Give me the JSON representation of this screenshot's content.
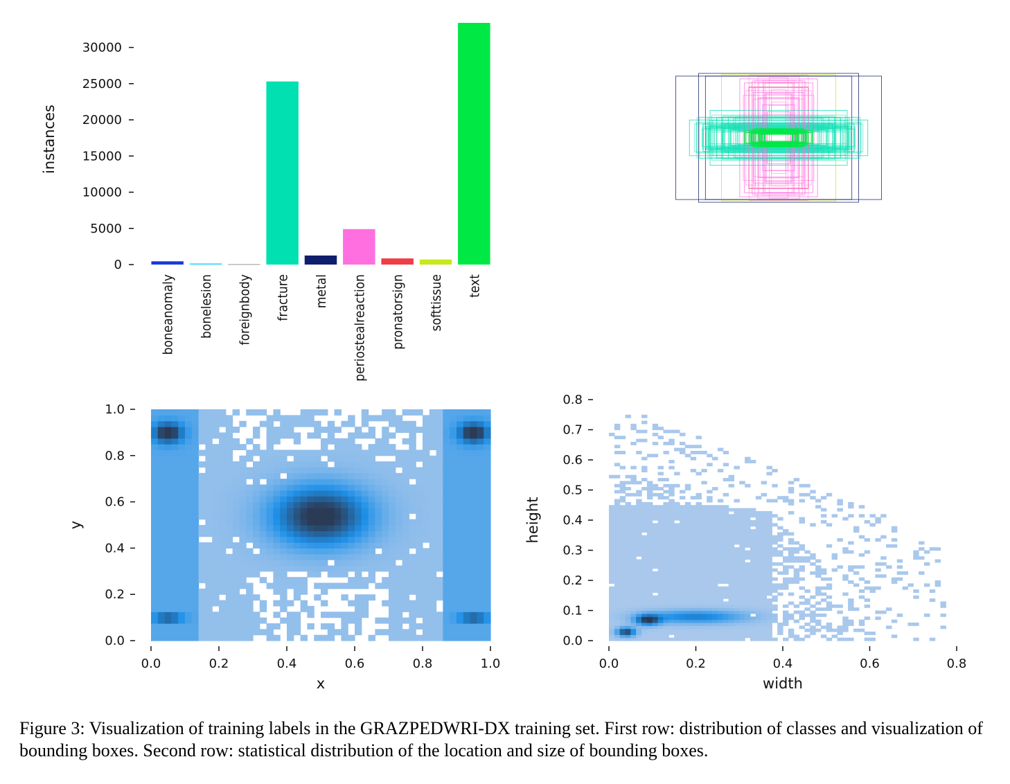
{
  "chart_data": [
    {
      "type": "bar",
      "categories": [
        "boneanomaly",
        "bonelesion",
        "foreignbody",
        "fracture",
        "metal",
        "periostealreaction",
        "pronatorsign",
        "softtissue",
        "text"
      ],
      "values": [
        450,
        150,
        30,
        25300,
        1250,
        4900,
        850,
        700,
        33400
      ],
      "colors": [
        "#1a3ad6",
        "#22d2ff",
        "#3a2a1a",
        "#00e0b0",
        "#101f6b",
        "#ff6fe0",
        "#ee3e46",
        "#c8e81c",
        "#00e844"
      ],
      "ylabel": "instances",
      "ylim": [
        0,
        33400
      ],
      "yticks": [
        0,
        5000,
        10000,
        15000,
        20000,
        25000,
        30000
      ],
      "yticklabels": [
        "0",
        "5000",
        "10000",
        "15000",
        "20000",
        "25000",
        "30000"
      ]
    },
    {
      "type": "box_overlay",
      "description_colors": [
        "#00e0b0",
        "#00e844",
        "#ff6fe0",
        "#ee3e46",
        "#c8e81c",
        "#101f6b",
        "#1a3ad6"
      ],
      "boxes": [
        {
          "w": 0.9,
          "h": 0.9,
          "color": "#101f6b"
        },
        {
          "w": 0.7,
          "h": 0.94,
          "color": "#101f6b"
        },
        {
          "w": 0.5,
          "h": 0.92,
          "color": "#c8e81c"
        },
        {
          "w": 0.64,
          "h": 0.9,
          "color": "#101f6b"
        },
        {
          "w": 0.34,
          "h": 0.86,
          "color": "#ff6fe0"
        },
        {
          "w": 0.3,
          "h": 0.8,
          "color": "#ff6fe0"
        },
        {
          "w": 0.26,
          "h": 0.74,
          "color": "#ee3e46"
        },
        {
          "w": 0.22,
          "h": 0.66,
          "color": "#ff6fe0"
        },
        {
          "w": 0.18,
          "h": 0.58,
          "color": "#ff6fe0"
        },
        {
          "w": 0.14,
          "h": 0.48,
          "color": "#ff6fe0"
        },
        {
          "w": 0.1,
          "h": 0.38,
          "color": "#ff6fe0"
        },
        {
          "w": 0.78,
          "h": 0.26,
          "color": "#00e0b0"
        },
        {
          "w": 0.72,
          "h": 0.22,
          "color": "#00e0b0"
        },
        {
          "w": 0.66,
          "h": 0.2,
          "color": "#00e0b0"
        },
        {
          "w": 0.6,
          "h": 0.18,
          "color": "#00e0b0"
        },
        {
          "w": 0.54,
          "h": 0.16,
          "color": "#00e0b0"
        },
        {
          "w": 0.48,
          "h": 0.14,
          "color": "#00e0b0"
        },
        {
          "w": 0.42,
          "h": 0.12,
          "color": "#00e0b0"
        },
        {
          "w": 0.36,
          "h": 0.1,
          "color": "#00e0b0"
        },
        {
          "w": 0.3,
          "h": 0.08,
          "color": "#00e844"
        },
        {
          "w": 0.24,
          "h": 0.06,
          "color": "#00e844"
        },
        {
          "w": 0.18,
          "h": 0.05,
          "color": "#00e844"
        },
        {
          "w": 0.6,
          "h": 0.4,
          "color": "#00e0b0"
        },
        {
          "w": 0.44,
          "h": 0.3,
          "color": "#00e0b0"
        }
      ]
    },
    {
      "type": "heatmap",
      "xlabel": "x",
      "ylabel": "y",
      "xlim": [
        0,
        1
      ],
      "ylim": [
        0,
        1
      ],
      "xticks": [
        0.0,
        0.2,
        0.4,
        0.6,
        0.8,
        1.0
      ],
      "xticklabels": [
        "0.0",
        "0.2",
        "0.4",
        "0.6",
        "0.8",
        "1.0"
      ],
      "yticks": [
        0.0,
        0.2,
        0.4,
        0.6,
        0.8,
        1.0
      ],
      "yticklabels": [
        "0.0",
        "0.2",
        "0.4",
        "0.6",
        "0.8",
        "1.0"
      ],
      "hotspots": [
        {
          "x": 0.5,
          "y": 0.54,
          "sx": 0.1,
          "sy": 0.09,
          "weight": 1.0
        },
        {
          "x": 0.05,
          "y": 0.9,
          "sx": 0.03,
          "sy": 0.03,
          "weight": 0.85
        },
        {
          "x": 0.95,
          "y": 0.9,
          "sx": 0.03,
          "sy": 0.03,
          "weight": 0.85
        },
        {
          "x": 0.05,
          "y": 0.1,
          "sx": 0.03,
          "sy": 0.01,
          "weight": 0.9
        },
        {
          "x": 0.95,
          "y": 0.1,
          "sx": 0.03,
          "sy": 0.01,
          "weight": 0.9
        }
      ],
      "colorscale": [
        "#a9c8ec",
        "#1e90e8",
        "#2b3a55"
      ]
    },
    {
      "type": "heatmap",
      "xlabel": "width",
      "ylabel": "height",
      "xlim": [
        0,
        0.8
      ],
      "ylim": [
        0,
        0.8
      ],
      "xticks": [
        0.0,
        0.2,
        0.4,
        0.6,
        0.8
      ],
      "xticklabels": [
        "0.0",
        "0.2",
        "0.4",
        "0.6",
        "0.8"
      ],
      "yticks": [
        0.0,
        0.1,
        0.2,
        0.3,
        0.4,
        0.5,
        0.6,
        0.7,
        0.8
      ],
      "yticklabels": [
        "0.0",
        "0.1",
        "0.2",
        "0.3",
        "0.4",
        "0.5",
        "0.6",
        "0.7",
        "0.8"
      ],
      "hotspots": [
        {
          "x": 0.04,
          "y": 0.03,
          "sx": 0.015,
          "sy": 0.01,
          "weight": 1.0
        },
        {
          "x": 0.09,
          "y": 0.07,
          "sx": 0.02,
          "sy": 0.012,
          "weight": 0.95
        },
        {
          "x": 0.2,
          "y": 0.08,
          "sx": 0.08,
          "sy": 0.015,
          "weight": 0.6
        }
      ],
      "colorscale": [
        "#a9c8ec",
        "#1e90e8",
        "#2b3a55"
      ]
    }
  ],
  "caption": "Figure 3: Visualization of training labels in the GRAZPEDWRI-DX training set. First row: distribution of classes and visualization of bounding boxes. Second row: statistical distribution of the location and size of bounding boxes."
}
